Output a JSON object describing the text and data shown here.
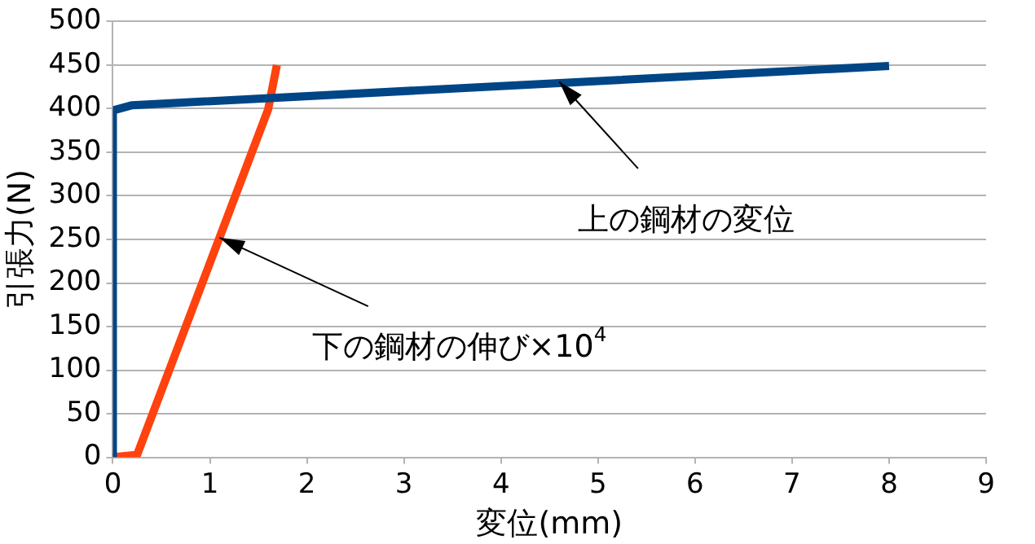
{
  "chart_data": {
    "type": "line",
    "xlabel": "変位(mm)",
    "ylabel": "引張力(N)",
    "series": [
      {
        "x": [
          0,
          0,
          0.2,
          8
        ],
        "values": [
          0,
          398,
          404,
          449
        ],
        "color": "#004586"
      },
      {
        "x": [
          0,
          0.25,
          1.6,
          1.69
        ],
        "values": [
          0,
          3,
          399,
          450
        ],
        "color": "#ff420e"
      }
    ],
    "xlim": [
      0,
      9
    ],
    "xticks": [
      0,
      1,
      2,
      3,
      4,
      5,
      6,
      7,
      8,
      9
    ],
    "ylim": [
      0,
      500
    ],
    "yticks": [
      0,
      50,
      100,
      150,
      200,
      250,
      300,
      350,
      400,
      450,
      500
    ],
    "grid": "y",
    "legend": false,
    "marker": "none",
    "line_style": "solid",
    "annotations": [
      {
        "text": "上の鋼材の変位",
        "x": 4.6,
        "y": 431
      },
      {
        "text": "下の鋼材の伸び×10$^{4}$",
        "x": 1.1,
        "y": 252
      }
    ]
  }
}
